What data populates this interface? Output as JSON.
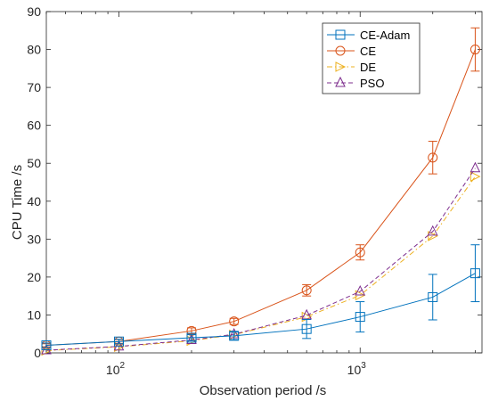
{
  "chart_data": {
    "type": "line",
    "xscale": "log",
    "xlim": [
      50,
      3200
    ],
    "ylim": [
      0,
      90
    ],
    "xlabel": "Observation period /s",
    "ylabel": "CPU Time /s",
    "xticks": [
      {
        "value": 100,
        "base": "10",
        "exp": "2"
      },
      {
        "value": 1000,
        "base": "10",
        "exp": "3"
      }
    ],
    "yticks": [
      0,
      10,
      20,
      30,
      40,
      50,
      60,
      70,
      80,
      90
    ],
    "grid": false,
    "legend_position": "top-right",
    "x": [
      50,
      100,
      200,
      300,
      600,
      1000,
      2000,
      3000
    ],
    "series": [
      {
        "name": "CE-Adam",
        "color": "#0072BD",
        "marker": "square",
        "dash": "solid",
        "values": [
          2.0,
          3.0,
          4.0,
          4.5,
          6.3,
          9.5,
          14.7,
          21.0
        ],
        "errors": [
          0.6,
          0.6,
          0.8,
          1.0,
          2.5,
          4.0,
          6.0,
          7.5
        ]
      },
      {
        "name": "CE",
        "color": "#D95319",
        "marker": "circle",
        "dash": "solid",
        "values": [
          2.0,
          3.0,
          5.8,
          8.3,
          16.5,
          26.5,
          51.5,
          80.0
        ],
        "errors": [
          0.4,
          0.5,
          0.8,
          0.8,
          1.5,
          2.0,
          4.3,
          5.7
        ]
      },
      {
        "name": "DE",
        "color": "#EDB120",
        "marker": "triangle-right",
        "dash": "dashdot",
        "values": [
          0.6,
          1.6,
          3.2,
          4.8,
          9.5,
          15.2,
          30.8,
          46.5
        ],
        "errors": [
          0,
          0,
          0,
          0,
          0,
          0,
          0,
          0
        ]
      },
      {
        "name": "PSO",
        "color": "#7E2F8E",
        "marker": "triangle-up",
        "dash": "dashed",
        "values": [
          0.7,
          1.7,
          3.4,
          4.9,
          9.9,
          16.2,
          32.0,
          48.7
        ],
        "errors": [
          0,
          0,
          0,
          0,
          0,
          0,
          0,
          0
        ]
      }
    ]
  }
}
